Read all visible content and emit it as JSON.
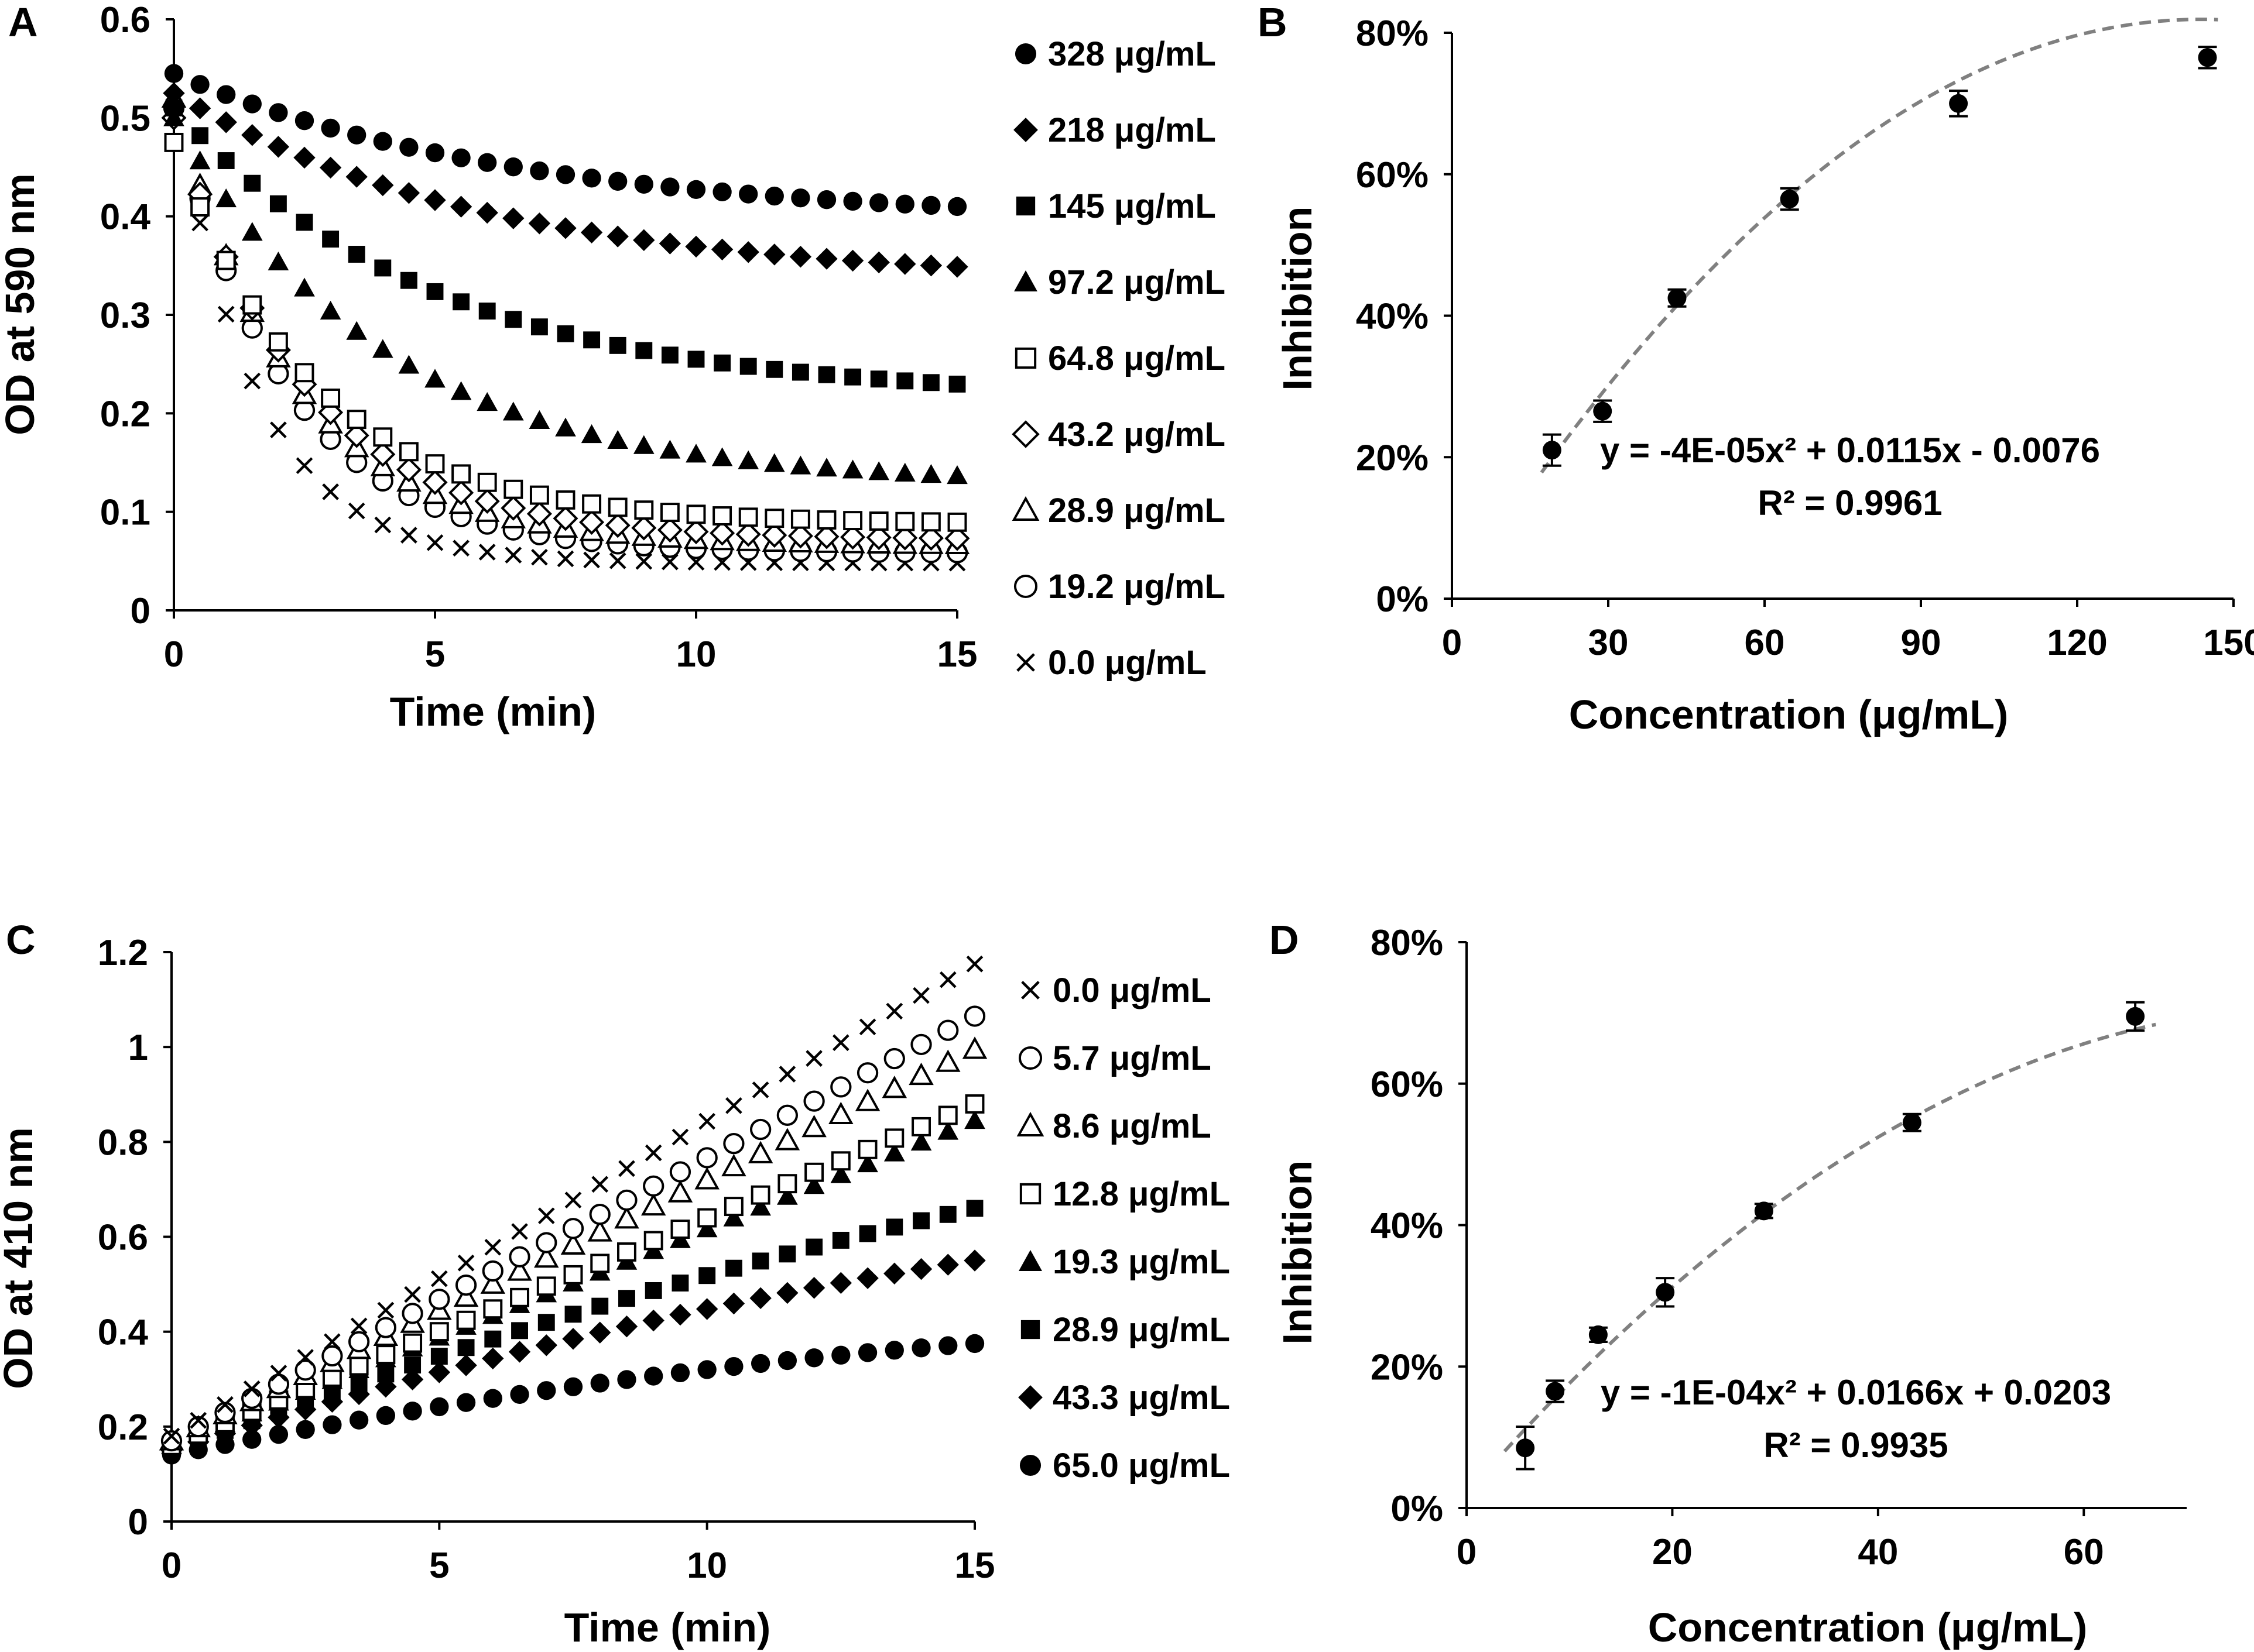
{
  "figure": {
    "panel_count": 4,
    "marker_color": "#000000",
    "fit_color": "#808080"
  },
  "chart_data": [
    {
      "panel": "A",
      "type": "scatter",
      "xlabel": "Time (min)",
      "ylabel": "OD at 590 nm",
      "xlim": [
        0,
        15
      ],
      "ylim": [
        0,
        0.6
      ],
      "xticks": [
        "0",
        "5",
        "10",
        "15"
      ],
      "yticks": [
        "0",
        "0.1",
        "0.2",
        "0.3",
        "0.4",
        "0.5",
        "0.6"
      ],
      "x": [
        0,
        0.5,
        1,
        1.5,
        2,
        2.5,
        3,
        3.5,
        4,
        4.5,
        5,
        5.5,
        6,
        6.5,
        7,
        7.5,
        8,
        8.5,
        9,
        9.5,
        10,
        10.5,
        11,
        11.5,
        12,
        12.5,
        13,
        13.5,
        14,
        14.5,
        15
      ],
      "legend_position": "right",
      "series": [
        {
          "name": "328 μg/mL",
          "marker": "circle",
          "start": 0.545,
          "end": 0.395,
          "tau": 6.5
        },
        {
          "name": "218 μg/mL",
          "marker": "diamond",
          "start": 0.525,
          "end": 0.333,
          "tau": 6.0
        },
        {
          "name": "145 μg/mL",
          "marker": "square",
          "start": 0.51,
          "end": 0.215,
          "tau": 5.0
        },
        {
          "name": "97.2 μg/mL",
          "marker": "triangle",
          "start": 0.5,
          "end": 0.128,
          "tau": 4.0
        },
        {
          "name": "64.8 μg/mL",
          "marker": "square-open",
          "start": 0.475,
          "end": 0.088,
          "tau": 2.7
        },
        {
          "name": "43.2 μg/mL",
          "marker": "diamond-open",
          "start": 0.5,
          "end": 0.072,
          "tau": 2.5
        },
        {
          "name": "28.9 μg/mL",
          "marker": "triangle-open",
          "start": 0.52,
          "end": 0.066,
          "tau": 2.3
        },
        {
          "name": "19.2 μg/mL",
          "marker": "circle-open",
          "start": 0.51,
          "end": 0.058,
          "tau": 2.2
        },
        {
          "name": "0.0 μg/mL",
          "marker": "x",
          "start": 0.52,
          "end": 0.048,
          "tau": 1.6
        }
      ]
    },
    {
      "panel": "B",
      "type": "scatter",
      "xlabel": "Concentration (μg/mL)",
      "ylabel": "Inhibition",
      "xlim": [
        0,
        150
      ],
      "ylim": [
        0,
        0.8
      ],
      "xticks": [
        "0",
        "30",
        "60",
        "90",
        "120",
        "150"
      ],
      "yticks": [
        "0%",
        "20%",
        "40%",
        "60%",
        "80%"
      ],
      "x": [
        19.2,
        28.9,
        43.2,
        64.8,
        97.2,
        145
      ],
      "y": [
        0.21,
        0.265,
        0.425,
        0.565,
        0.7,
        0.765
      ],
      "error": [
        0.022,
        0.015,
        0.012,
        0.015,
        0.018,
        0.015
      ],
      "fit": {
        "a": -4e-05,
        "b": 0.0115,
        "c": -0.0076
      },
      "equation": "y = -4E-05x² + 0.0115x - 0.0076",
      "r2": "R² = 0.9961"
    },
    {
      "panel": "C",
      "type": "scatter",
      "xlabel": "Time (min)",
      "ylabel": "OD at 410 nm",
      "xlim": [
        0,
        15
      ],
      "ylim": [
        0,
        1.2
      ],
      "xticks": [
        "0",
        "5",
        "10",
        "15"
      ],
      "yticks": [
        "0",
        "0.2",
        "0.4",
        "0.6",
        "0.8",
        "1",
        "1.2"
      ],
      "x": [
        0,
        0.5,
        1,
        1.5,
        2,
        2.5,
        3,
        3.5,
        4,
        4.5,
        5,
        5.5,
        6,
        6.5,
        7,
        7.5,
        8,
        8.5,
        9,
        9.5,
        10,
        10.5,
        11,
        11.5,
        12,
        12.5,
        13,
        13.5,
        14,
        14.5,
        15
      ],
      "legend_position": "right",
      "series": [
        {
          "name": "0.0 μg/mL",
          "marker": "x",
          "start": 0.18,
          "end": 1.175,
          "curv": 0.0
        },
        {
          "name": "5.7 μg/mL",
          "marker": "circle-open",
          "start": 0.17,
          "end": 1.065,
          "curv": 0.0
        },
        {
          "name": "8.6 μg/mL",
          "marker": "triangle-open",
          "start": 0.17,
          "end": 0.995,
          "curv": 0.0
        },
        {
          "name": "12.8 μg/mL",
          "marker": "square-open",
          "start": 0.16,
          "end": 0.88,
          "curv": 0.0
        },
        {
          "name": "19.3 μg/mL",
          "marker": "triangle",
          "start": 0.16,
          "end": 0.845,
          "curv": 0.0
        },
        {
          "name": "28.9 μg/mL",
          "marker": "square",
          "start": 0.15,
          "end": 0.66,
          "curv": 0.25
        },
        {
          "name": "43.3 μg/mL",
          "marker": "diamond",
          "start": 0.15,
          "end": 0.55,
          "curv": 0.35
        },
        {
          "name": "65.0 μg/mL",
          "marker": "circle",
          "start": 0.14,
          "end": 0.375,
          "curv": 0.45
        }
      ]
    },
    {
      "panel": "D",
      "type": "scatter",
      "xlabel": "Concentration (μg/mL)",
      "ylabel": "Inhibition",
      "xlim": [
        0,
        70
      ],
      "ylim": [
        0,
        0.8
      ],
      "xticks": [
        "0",
        "20",
        "40",
        "60"
      ],
      "yticks": [
        "0%",
        "20%",
        "40%",
        "60%",
        "80%"
      ],
      "x": [
        5.7,
        8.6,
        12.8,
        19.3,
        28.9,
        43.3,
        65.0
      ],
      "y": [
        0.085,
        0.165,
        0.245,
        0.305,
        0.42,
        0.545,
        0.695
      ],
      "error": [
        0.03,
        0.015,
        0.01,
        0.02,
        0.01,
        0.012,
        0.02
      ],
      "fit": {
        "a": -0.0001,
        "b": 0.0166,
        "c": 0.0203
      },
      "equation": "y = -1E-04x² + 0.0166x + 0.0203",
      "r2": "R² = 0.9935"
    }
  ]
}
